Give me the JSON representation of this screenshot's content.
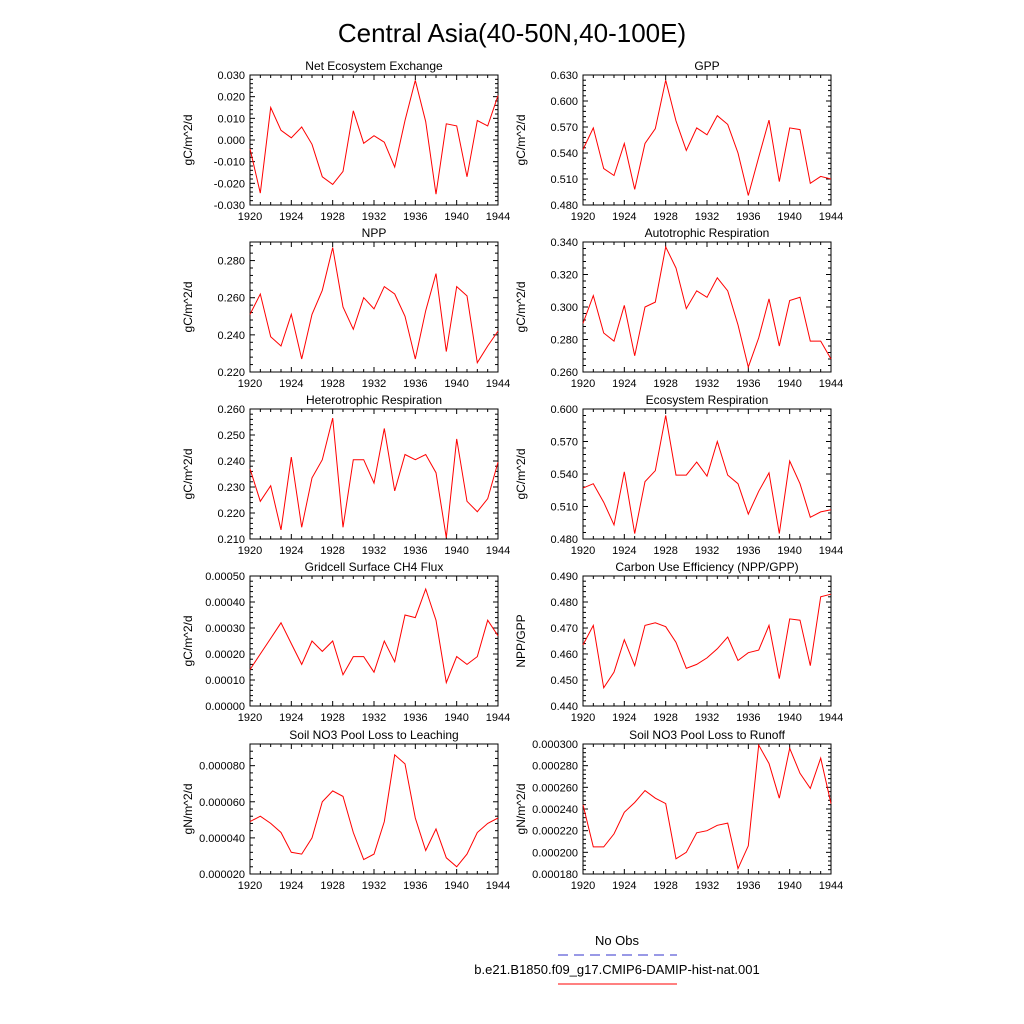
{
  "title": "Central Asia(40-50N,40-100E)",
  "legend": {
    "obs_label": "No Obs",
    "obs_color": "#3333cc",
    "model_label": "b.e21.B1850.f09_g17.CMIP6-DAMIP-hist-nat.001",
    "model_color": "#ff0000"
  },
  "chart_data": [
    {
      "type": "line",
      "title": "Net Ecosystem Exchange",
      "ylabel": "gC/m^2/d",
      "xlabel": "",
      "xlim": [
        1920,
        1944
      ],
      "ylim": [
        -0.03,
        0.03
      ],
      "xticks": [
        "1920",
        "1924",
        "1928",
        "1932",
        "1936",
        "1940",
        "1944"
      ],
      "yticks": [
        "-0.030",
        "-0.020",
        "-0.010",
        "0.000",
        "0.010",
        "0.020",
        "0.030"
      ],
      "x": [
        1920,
        1921,
        1922,
        1923,
        1924,
        1925,
        1926,
        1927,
        1928,
        1929,
        1930,
        1931,
        1932,
        1933,
        1934,
        1935,
        1936,
        1937,
        1938,
        1939,
        1940,
        1941,
        1942,
        1943,
        1944
      ],
      "series": [
        {
          "color": "#ff0000",
          "values": [
            -0.004,
            -0.0245,
            0.015,
            0.0045,
            0.001,
            0.006,
            -0.002,
            -0.017,
            -0.0205,
            -0.0145,
            0.0135,
            -0.0015,
            0.002,
            -0.001,
            -0.0125,
            0.009,
            0.0275,
            0.0085,
            -0.025,
            0.0075,
            0.0065,
            -0.017,
            0.009,
            0.0065,
            0.0205
          ]
        }
      ]
    },
    {
      "type": "line",
      "title": "GPP",
      "ylabel": "gC/m^2/d",
      "xlabel": "",
      "xlim": [
        1920,
        1944
      ],
      "ylim": [
        0.48,
        0.63
      ],
      "xticks": [
        "1920",
        "1924",
        "1928",
        "1932",
        "1936",
        "1940",
        "1944"
      ],
      "yticks": [
        "0.480",
        "0.510",
        "0.540",
        "0.570",
        "0.600",
        "0.630"
      ],
      "x": [
        1920,
        1921,
        1922,
        1923,
        1924,
        1925,
        1926,
        1927,
        1928,
        1929,
        1930,
        1931,
        1932,
        1933,
        1934,
        1935,
        1936,
        1937,
        1938,
        1939,
        1940,
        1941,
        1942,
        1943,
        1944
      ],
      "series": [
        {
          "color": "#ff0000",
          "values": [
            0.544,
            0.569,
            0.522,
            0.514,
            0.551,
            0.498,
            0.551,
            0.568,
            0.624,
            0.577,
            0.543,
            0.569,
            0.561,
            0.583,
            0.573,
            0.54,
            0.491,
            0.535,
            0.578,
            0.507,
            0.569,
            0.567,
            0.505,
            0.513,
            0.51
          ]
        }
      ]
    },
    {
      "type": "line",
      "title": "NPP",
      "ylabel": "gC/m^2/d",
      "xlabel": "",
      "xlim": [
        1920,
        1944
      ],
      "ylim": [
        0.22,
        0.29
      ],
      "xticks": [
        "1920",
        "1924",
        "1928",
        "1932",
        "1936",
        "1940",
        "1944"
      ],
      "yticks": [
        "0.220",
        "0.240",
        "0.260",
        "0.280"
      ],
      "x": [
        1920,
        1921,
        1922,
        1923,
        1924,
        1925,
        1926,
        1927,
        1928,
        1929,
        1930,
        1931,
        1932,
        1933,
        1934,
        1935,
        1936,
        1937,
        1938,
        1939,
        1940,
        1941,
        1942,
        1943,
        1944
      ],
      "series": [
        {
          "color": "#ff0000",
          "values": [
            0.251,
            0.262,
            0.239,
            0.234,
            0.251,
            0.227,
            0.251,
            0.264,
            0.287,
            0.255,
            0.243,
            0.26,
            0.254,
            0.266,
            0.262,
            0.25,
            0.227,
            0.253,
            0.273,
            0.231,
            0.266,
            0.261,
            0.225,
            0.234,
            0.242
          ]
        }
      ]
    },
    {
      "type": "line",
      "title": "Autotrophic Respiration",
      "ylabel": "gC/m^2/d",
      "xlabel": "",
      "xlim": [
        1920,
        1944
      ],
      "ylim": [
        0.26,
        0.34
      ],
      "xticks": [
        "1920",
        "1924",
        "1928",
        "1932",
        "1936",
        "1940",
        "1944"
      ],
      "yticks": [
        "0.260",
        "0.280",
        "0.300",
        "0.320",
        "0.340"
      ],
      "x": [
        1920,
        1921,
        1922,
        1923,
        1924,
        1925,
        1926,
        1927,
        1928,
        1929,
        1930,
        1931,
        1932,
        1933,
        1934,
        1935,
        1936,
        1937,
        1938,
        1939,
        1940,
        1941,
        1942,
        1943,
        1944
      ],
      "series": [
        {
          "color": "#ff0000",
          "values": [
            0.29,
            0.307,
            0.284,
            0.279,
            0.301,
            0.27,
            0.3,
            0.303,
            0.337,
            0.324,
            0.299,
            0.31,
            0.306,
            0.318,
            0.31,
            0.289,
            0.263,
            0.281,
            0.305,
            0.276,
            0.304,
            0.306,
            0.279,
            0.279,
            0.268
          ]
        }
      ]
    },
    {
      "type": "line",
      "title": "Heterotrophic Respiration",
      "ylabel": "gC/m^2/d",
      "xlabel": "",
      "xlim": [
        1920,
        1944
      ],
      "ylim": [
        0.21,
        0.26
      ],
      "xticks": [
        "1920",
        "1924",
        "1928",
        "1932",
        "1936",
        "1940",
        "1944"
      ],
      "yticks": [
        "0.210",
        "0.220",
        "0.230",
        "0.240",
        "0.250",
        "0.260"
      ],
      "x": [
        1920,
        1921,
        1922,
        1923,
        1924,
        1925,
        1926,
        1927,
        1928,
        1929,
        1930,
        1931,
        1932,
        1933,
        1934,
        1935,
        1936,
        1937,
        1938,
        1939,
        1940,
        1941,
        1942,
        1943,
        1944
      ],
      "series": [
        {
          "color": "#ff0000",
          "values": [
            0.237,
            0.2245,
            0.2305,
            0.2135,
            0.2415,
            0.2145,
            0.2335,
            0.2405,
            0.2565,
            0.2145,
            0.2405,
            0.2405,
            0.2315,
            0.2525,
            0.2285,
            0.2425,
            0.2405,
            0.2425,
            0.2355,
            0.2105,
            0.2485,
            0.2245,
            0.2205,
            0.2255,
            0.2395
          ]
        }
      ]
    },
    {
      "type": "line",
      "title": "Ecosystem Respiration",
      "ylabel": "gC/m^2/d",
      "xlabel": "",
      "xlim": [
        1920,
        1944
      ],
      "ylim": [
        0.48,
        0.6
      ],
      "xticks": [
        "1920",
        "1924",
        "1928",
        "1932",
        "1936",
        "1940",
        "1944"
      ],
      "yticks": [
        "0.480",
        "0.510",
        "0.540",
        "0.570",
        "0.600"
      ],
      "x": [
        1920,
        1921,
        1922,
        1923,
        1924,
        1925,
        1926,
        1927,
        1928,
        1929,
        1930,
        1931,
        1932,
        1933,
        1934,
        1935,
        1936,
        1937,
        1938,
        1939,
        1940,
        1941,
        1942,
        1943,
        1944
      ],
      "series": [
        {
          "color": "#ff0000",
          "values": [
            0.527,
            0.531,
            0.514,
            0.493,
            0.542,
            0.485,
            0.533,
            0.543,
            0.594,
            0.539,
            0.539,
            0.551,
            0.538,
            0.57,
            0.539,
            0.531,
            0.503,
            0.524,
            0.541,
            0.485,
            0.552,
            0.531,
            0.5,
            0.505,
            0.507
          ]
        }
      ]
    },
    {
      "type": "line",
      "title": "Gridcell Surface CH4 Flux",
      "ylabel": "gC/m^2/d",
      "xlabel": "",
      "xlim": [
        1920,
        1944
      ],
      "ylim": [
        0,
        0.0005
      ],
      "xticks": [
        "1920",
        "1924",
        "1928",
        "1932",
        "1936",
        "1940",
        "1944"
      ],
      "yticks": [
        "0.00000",
        "0.00010",
        "0.00020",
        "0.00030",
        "0.00040",
        "0.00050"
      ],
      "x": [
        1920,
        1921,
        1922,
        1923,
        1924,
        1925,
        1926,
        1927,
        1928,
        1929,
        1930,
        1931,
        1932,
        1933,
        1934,
        1935,
        1936,
        1937,
        1938,
        1939,
        1940,
        1941,
        1942,
        1943,
        1944
      ],
      "series": [
        {
          "color": "#ff0000",
          "values": [
            0.00014,
            0.0002,
            0.00026,
            0.00032,
            0.00024,
            0.00016,
            0.00025,
            0.00021,
            0.00025,
            0.00012,
            0.00019,
            0.00019,
            0.00013,
            0.00025,
            0.00017,
            0.00035,
            0.00034,
            0.00045,
            0.00033,
            9e-05,
            0.00019,
            0.00016,
            0.00019,
            0.00033,
            0.00027
          ]
        }
      ]
    },
    {
      "type": "line",
      "title": "Carbon Use Efficiency (NPP/GPP)",
      "ylabel": "NPP/GPP",
      "xlabel": "",
      "xlim": [
        1920,
        1944
      ],
      "ylim": [
        0.44,
        0.49
      ],
      "xticks": [
        "1920",
        "1924",
        "1928",
        "1932",
        "1936",
        "1940",
        "1944"
      ],
      "yticks": [
        "0.440",
        "0.450",
        "0.460",
        "0.470",
        "0.480",
        "0.490"
      ],
      "x": [
        1920,
        1921,
        1922,
        1923,
        1924,
        1925,
        1926,
        1927,
        1928,
        1929,
        1930,
        1931,
        1932,
        1933,
        1934,
        1935,
        1936,
        1937,
        1938,
        1939,
        1940,
        1941,
        1942,
        1943,
        1944
      ],
      "series": [
        {
          "color": "#ff0000",
          "values": [
            0.4635,
            0.471,
            0.447,
            0.453,
            0.4655,
            0.4555,
            0.471,
            0.472,
            0.4705,
            0.4645,
            0.4545,
            0.456,
            0.4585,
            0.462,
            0.4665,
            0.4575,
            0.4605,
            0.4615,
            0.471,
            0.4505,
            0.4735,
            0.473,
            0.4555,
            0.482,
            0.483
          ]
        }
      ]
    },
    {
      "type": "line",
      "title": "Soil NO3 Pool Loss to Leaching",
      "ylabel": "gN/m^2/d",
      "xlabel": "",
      "xlim": [
        1920,
        1944
      ],
      "ylim": [
        2e-05,
        9.2e-05
      ],
      "xticks": [
        "1920",
        "1924",
        "1928",
        "1932",
        "1936",
        "1940",
        "1944"
      ],
      "yticks": [
        "0.000020",
        "0.000040",
        "0.000060",
        "0.000080"
      ],
      "ytick_values": [
        2e-05,
        4e-05,
        6e-05,
        8e-05
      ],
      "x": [
        1920,
        1921,
        1922,
        1923,
        1924,
        1925,
        1926,
        1927,
        1928,
        1929,
        1930,
        1931,
        1932,
        1933,
        1934,
        1935,
        1936,
        1937,
        1938,
        1939,
        1940,
        1941,
        1942,
        1943,
        1944
      ],
      "series": [
        {
          "color": "#ff0000",
          "values": [
            4.9e-05,
            5.2e-05,
            4.8e-05,
            4.3e-05,
            3.2e-05,
            3.1e-05,
            4e-05,
            6e-05,
            6.6e-05,
            6.3e-05,
            4.3e-05,
            2.8e-05,
            3.1e-05,
            4.9e-05,
            8.6e-05,
            8.1e-05,
            5.1e-05,
            3.3e-05,
            4.5e-05,
            2.9e-05,
            2.4e-05,
            3.1e-05,
            4.3e-05,
            4.8e-05,
            5.1e-05
          ]
        }
      ]
    },
    {
      "type": "line",
      "title": "Soil NO3 Pool Loss to Runoff",
      "ylabel": "gN/m^2/d",
      "xlabel": "",
      "xlim": [
        1920,
        1944
      ],
      "ylim": [
        0.00018,
        0.0003
      ],
      "xticks": [
        "1920",
        "1924",
        "1928",
        "1932",
        "1936",
        "1940",
        "1944"
      ],
      "yticks": [
        "0.000180",
        "0.000200",
        "0.000220",
        "0.000240",
        "0.000260",
        "0.000280",
        "0.000300"
      ],
      "x": [
        1920,
        1921,
        1922,
        1923,
        1924,
        1925,
        1926,
        1927,
        1928,
        1929,
        1930,
        1931,
        1932,
        1933,
        1934,
        1935,
        1936,
        1937,
        1938,
        1939,
        1940,
        1941,
        1942,
        1943,
        1944
      ],
      "series": [
        {
          "color": "#ff0000",
          "values": [
            0.000244,
            0.000205,
            0.000205,
            0.000217,
            0.000237,
            0.000246,
            0.000257,
            0.00025,
            0.000245,
            0.000194,
            0.0002,
            0.000218,
            0.00022,
            0.000225,
            0.000227,
            0.000185,
            0.000206,
            0.000299,
            0.000282,
            0.00025,
            0.000296,
            0.000273,
            0.000259,
            0.000287,
            0.000245
          ]
        }
      ]
    }
  ]
}
